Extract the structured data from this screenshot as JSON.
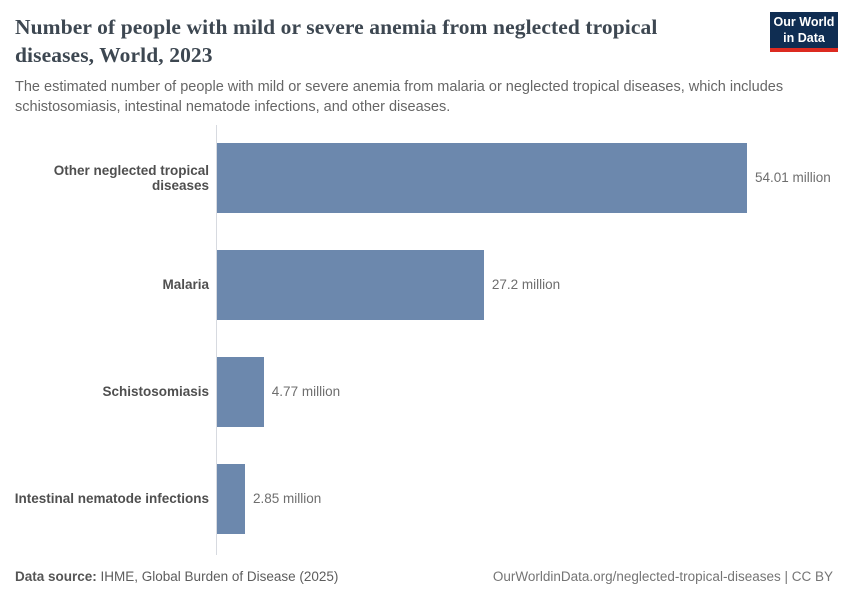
{
  "header": {
    "title": "Number of people with mild or severe anemia from neglected tropical diseases, World, 2023",
    "subtitle": "The estimated number of people with mild or severe anemia from malaria or neglected tropical diseases, which includes schistosomiasis, intestinal nematode infections, and other diseases.",
    "logo_line1": "Our World",
    "logo_line2": "in Data"
  },
  "chart_data": {
    "type": "bar",
    "orientation": "horizontal",
    "title": "Number of people with mild or severe anemia from neglected tropical diseases, World, 2023",
    "categories": [
      "Other neglected tropical diseases",
      "Malaria",
      "Schistosomiasis",
      "Intestinal nematode infections"
    ],
    "values": [
      54.01,
      27.2,
      4.77,
      2.85
    ],
    "value_labels": [
      "54.01 million",
      "27.2 million",
      "4.77 million",
      "2.85 million"
    ],
    "unit": "million people",
    "xlim": [
      0,
      54.01
    ],
    "grid": false,
    "legend": "none",
    "bar_color": "#6c88ad"
  },
  "footer": {
    "datasource_label": "Data source:",
    "datasource_value": " IHME, Global Burden of Disease (2025)",
    "link": "OurWorldinData.org/neglected-tropical-diseases | CC BY"
  },
  "colors": {
    "bar": "#6c88ad",
    "title": "#3d4751",
    "subtitle": "#666666",
    "axis_line": "#d7dae0",
    "logo_background": "#0f2d52",
    "logo_accent": "#dc2a20"
  }
}
